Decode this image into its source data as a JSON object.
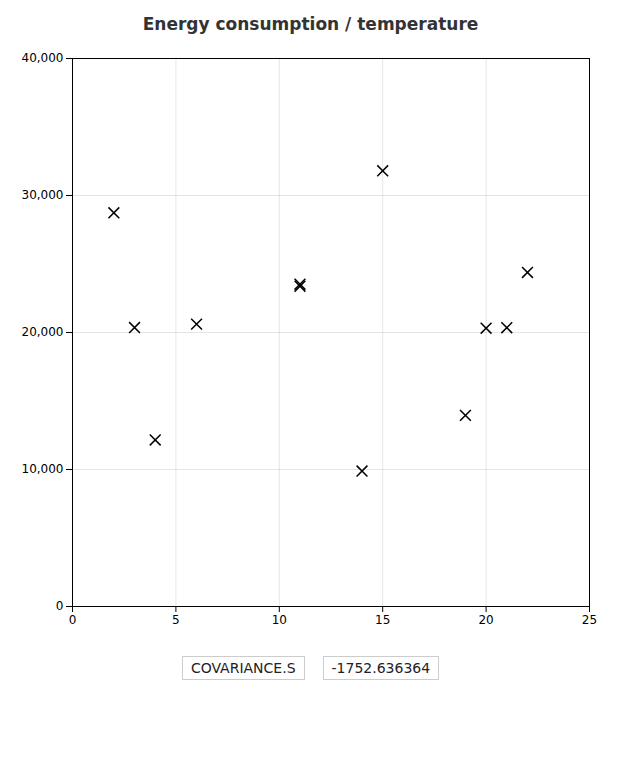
{
  "chart_data": {
    "type": "scatter",
    "title": "Energy consumption / temperature",
    "x": [
      4,
      3,
      6,
      11,
      15,
      22,
      20,
      21,
      19,
      14,
      11,
      2
    ],
    "values": [
      12155,
      20360,
      20613,
      23526,
      31801,
      24385,
      20314,
      20350,
      13948,
      9887,
      23378,
      28739
    ],
    "color": "black",
    "marker": "x",
    "xlim": [
      0,
      25
    ],
    "xticks": [
      0,
      5,
      10,
      15,
      20,
      25
    ],
    "ylim": [
      0,
      40000
    ],
    "yticks": [
      0,
      {
        "value": 10000,
        "label": "10,000"
      },
      {
        "value": 20000,
        "label": "20,000"
      },
      {
        "value": 30000,
        "label": "30,000"
      },
      {
        "value": 40000,
        "label": "40,000"
      }
    ],
    "grid": true,
    "annotations": [
      "COVARIANCE.S",
      "-1752.636364"
    ]
  }
}
